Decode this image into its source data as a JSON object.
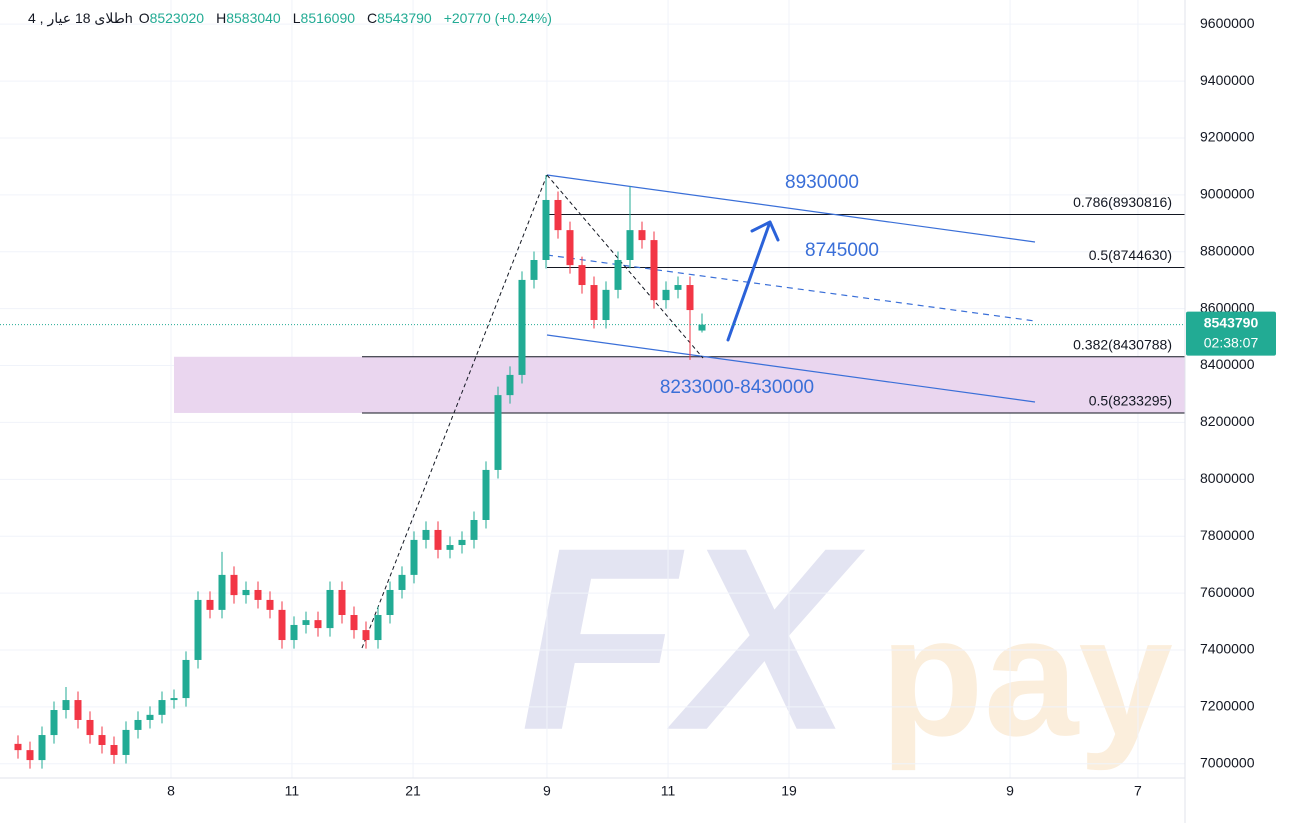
{
  "chart_data": {
    "type": "candlestick",
    "title": "طلای 18 عیار , 4h",
    "header_labels": {
      "open": "O",
      "high": "H",
      "low": "L",
      "close": "C"
    },
    "change": "+20770 (+0.24%)",
    "countdown": "02:38:07",
    "up_color": "#22ab94",
    "down_color": "#f23645",
    "open": [
      7070000,
      7048000,
      7013000,
      7101000,
      7189000,
      7224000,
      7154000,
      7101000,
      7066000,
      7031000,
      7119000,
      7154000,
      7172000,
      7224000,
      7231000,
      7365000,
      7576000,
      7541000,
      7664000,
      7593000,
      7611000,
      7576000,
      7541000,
      7435000,
      7488000,
      7505000,
      7477000,
      7611000,
      7523000,
      7470000,
      7435000,
      7523000,
      7611000,
      7664000,
      7787000,
      7822000,
      7752000,
      7769000,
      7787000,
      7857000,
      8033000,
      8296000,
      8367000,
      8701000,
      8771000,
      8982000,
      8876000,
      8753000,
      8683000,
      8560000,
      8666000,
      8771000,
      8876000,
      8841000,
      8630000,
      8666000,
      8683000,
      8523020
    ],
    "high": [
      7100000,
      7078000,
      7131000,
      7219000,
      7270000,
      7254000,
      7184000,
      7131000,
      7096000,
      7149000,
      7184000,
      7202000,
      7254000,
      7261000,
      7395000,
      7606000,
      7606000,
      7745000,
      7694000,
      7641000,
      7641000,
      7606000,
      7571000,
      7518000,
      7535000,
      7535000,
      7641000,
      7641000,
      7553000,
      7500000,
      7553000,
      7641000,
      7694000,
      7817000,
      7852000,
      7852000,
      7799000,
      7817000,
      7887000,
      8063000,
      8326000,
      8397000,
      8731000,
      8801000,
      9070000,
      9012000,
      8906000,
      8783000,
      8713000,
      8696000,
      8801000,
      9030000,
      8906000,
      8871000,
      8696000,
      8713000,
      8713000,
      8583040
    ],
    "low": [
      7018000,
      6983000,
      6983000,
      7071000,
      7159000,
      7124000,
      7071000,
      7036000,
      7000000,
      7001000,
      7089000,
      7124000,
      7142000,
      7194000,
      7201000,
      7335000,
      7511000,
      7511000,
      7563000,
      7563000,
      7546000,
      7511000,
      7405000,
      7405000,
      7458000,
      7447000,
      7447000,
      7493000,
      7440000,
      7405000,
      7405000,
      7493000,
      7581000,
      7634000,
      7757000,
      7722000,
      7722000,
      7739000,
      7757000,
      7827000,
      8003000,
      8266000,
      8337000,
      8671000,
      8741000,
      8846000,
      8723000,
      8653000,
      8530000,
      8530000,
      8636000,
      8741000,
      8811000,
      8600000,
      8600000,
      8636000,
      8420000,
      8516090
    ],
    "close": [
      7048000,
      7013000,
      7101000,
      7189000,
      7224000,
      7154000,
      7101000,
      7066000,
      7031000,
      7119000,
      7154000,
      7172000,
      7224000,
      7231000,
      7365000,
      7576000,
      7541000,
      7664000,
      7593000,
      7611000,
      7576000,
      7541000,
      7435000,
      7488000,
      7505000,
      7477000,
      7611000,
      7523000,
      7470000,
      7435000,
      7523000,
      7611000,
      7664000,
      7787000,
      7822000,
      7752000,
      7769000,
      7787000,
      7857000,
      8033000,
      8296000,
      8367000,
      8701000,
      8771000,
      8982000,
      8876000,
      8753000,
      8683000,
      8560000,
      8666000,
      8771000,
      8876000,
      8841000,
      8630000,
      8666000,
      8683000,
      8595000,
      8543790
    ],
    "xlim": [
      -1.5,
      97.25
    ],
    "xticks": [
      {
        "value": 12.75,
        "label": "8"
      },
      {
        "value": 22.83,
        "label": "11"
      },
      {
        "value": 32.92,
        "label": "21"
      },
      {
        "value": 44.08,
        "label": "9"
      },
      {
        "value": 54.17,
        "label": "11"
      },
      {
        "value": 64.25,
        "label": "19"
      },
      {
        "value": 82.67,
        "label": "9"
      },
      {
        "value": 93.33,
        "label": "7"
      }
    ],
    "ylim": [
      6950000,
      9685000
    ],
    "yticks": [
      7000000,
      7200000,
      7400000,
      7600000,
      7800000,
      8000000,
      8200000,
      8400000,
      8600000,
      8800000,
      9000000,
      9200000,
      9400000,
      9600000
    ],
    "grid": true,
    "fib_levels": [
      {
        "value": 8930816,
        "label": "0.786(8930816)"
      },
      {
        "value": 8744630,
        "label": "0.5(8744630)"
      },
      {
        "value": 8430788,
        "label": "0.382(8430788)"
      },
      {
        "value": 8233295,
        "label": "0.5(8233295)"
      }
    ],
    "annotations": [
      "8930000",
      "8745000",
      "8233000-8430000"
    ],
    "watermark": [
      "FX",
      "pay"
    ]
  }
}
